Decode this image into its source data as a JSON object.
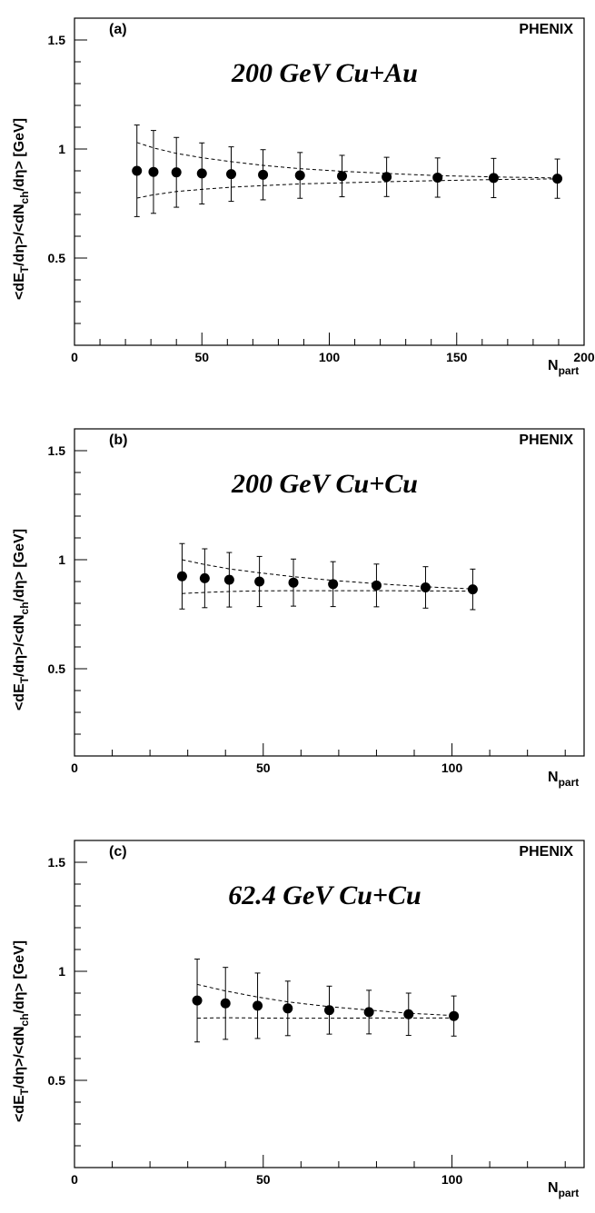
{
  "figure": {
    "xlabel_main": "N",
    "xlabel_sub": "part",
    "ylabel_parts": [
      "<dE",
      "T",
      "/dη>/<dN",
      "ch",
      "/dη> [GeV]"
    ]
  },
  "chart_data": [
    {
      "type": "scatter",
      "panel_label": "(a)",
      "brand": "PHENIX",
      "title": "200 GeV Cu+Au",
      "xlabel": "N_part",
      "ylabel": "<dE_T/dη>/<dN_ch/dη> [GeV]",
      "xlim": [
        0,
        200
      ],
      "ylim": [
        0.1,
        1.6
      ],
      "x_ticks": [
        0,
        50,
        100,
        150,
        200
      ],
      "y_ticks": [
        0.5,
        1,
        1.5
      ],
      "y_tick_labels": [
        "0.5",
        "1",
        "1.5"
      ],
      "series": [
        {
          "x": [
            24.5,
            31,
            40,
            50,
            61.5,
            74,
            88.5,
            105,
            122.5,
            142.5,
            164.5,
            189.5
          ],
          "y": [
            0.9,
            0.895,
            0.893,
            0.888,
            0.885,
            0.882,
            0.879,
            0.876,
            0.872,
            0.869,
            0.867,
            0.864
          ],
          "err": [
            0.21,
            0.19,
            0.16,
            0.14,
            0.125,
            0.115,
            0.105,
            0.095,
            0.09,
            0.09,
            0.09,
            0.09
          ]
        }
      ],
      "band": {
        "x": [
          24.5,
          31,
          40,
          50,
          61.5,
          74,
          88.5,
          105,
          122.5,
          142.5,
          164.5,
          189.5
        ],
        "upper": [
          1.03,
          1.005,
          0.98,
          0.96,
          0.942,
          0.925,
          0.91,
          0.898,
          0.888,
          0.878,
          0.872,
          0.867
        ],
        "lower": [
          0.775,
          0.79,
          0.805,
          0.815,
          0.825,
          0.832,
          0.84,
          0.845,
          0.85,
          0.855,
          0.86,
          0.863
        ]
      }
    },
    {
      "type": "scatter",
      "panel_label": "(b)",
      "brand": "PHENIX",
      "title": "200 GeV Cu+Cu",
      "xlabel": "N_part",
      "ylabel": "<dE_T/dη>/<dN_ch/dη> [GeV]",
      "xlim": [
        0,
        135
      ],
      "ylim": [
        0.1,
        1.6
      ],
      "x_ticks": [
        0,
        50,
        100
      ],
      "y_ticks": [
        0.5,
        1,
        1.5
      ],
      "y_tick_labels": [
        "0.5",
        "1",
        "1.5"
      ],
      "series": [
        {
          "x": [
            28.5,
            34.5,
            41,
            49,
            58,
            68.5,
            80,
            93,
            105.5
          ],
          "y": [
            0.924,
            0.915,
            0.908,
            0.9,
            0.895,
            0.888,
            0.882,
            0.873,
            0.864
          ],
          "err": [
            0.15,
            0.135,
            0.125,
            0.115,
            0.108,
            0.103,
            0.098,
            0.095,
            0.093
          ]
        }
      ],
      "band": {
        "x": [
          28.5,
          34.5,
          41,
          49,
          58,
          68.5,
          80,
          93,
          105.5
        ],
        "upper": [
          1.0,
          0.978,
          0.958,
          0.94,
          0.922,
          0.905,
          0.89,
          0.876,
          0.866
        ],
        "lower": [
          0.845,
          0.85,
          0.854,
          0.857,
          0.858,
          0.858,
          0.858,
          0.857,
          0.856
        ]
      }
    },
    {
      "type": "scatter",
      "panel_label": "(c)",
      "brand": "PHENIX",
      "title": "62.4 GeV Cu+Cu",
      "xlabel": "N_part",
      "ylabel": "<dE_T/dη>/<dN_ch/dη> [GeV]",
      "xlim": [
        0,
        135
      ],
      "ylim": [
        0.1,
        1.6
      ],
      "x_ticks": [
        0,
        50,
        100
      ],
      "y_ticks": [
        0.5,
        1,
        1.5
      ],
      "y_tick_labels": [
        "0.5",
        "1",
        "1.5"
      ],
      "series": [
        {
          "x": [
            32.5,
            40,
            48.5,
            56.5,
            67.5,
            78,
            88.5,
            100.5
          ],
          "y": [
            0.866,
            0.853,
            0.842,
            0.83,
            0.822,
            0.813,
            0.803,
            0.795
          ],
          "err": [
            0.19,
            0.165,
            0.15,
            0.125,
            0.11,
            0.1,
            0.097,
            0.092
          ]
        }
      ],
      "band": {
        "x": [
          32.5,
          40,
          48.5,
          56.5,
          67.5,
          78,
          88.5,
          100.5
        ],
        "upper": [
          0.94,
          0.91,
          0.882,
          0.86,
          0.838,
          0.822,
          0.808,
          0.797
        ],
        "lower": [
          0.785,
          0.787,
          0.786,
          0.785,
          0.785,
          0.786,
          0.786,
          0.786
        ]
      }
    }
  ]
}
